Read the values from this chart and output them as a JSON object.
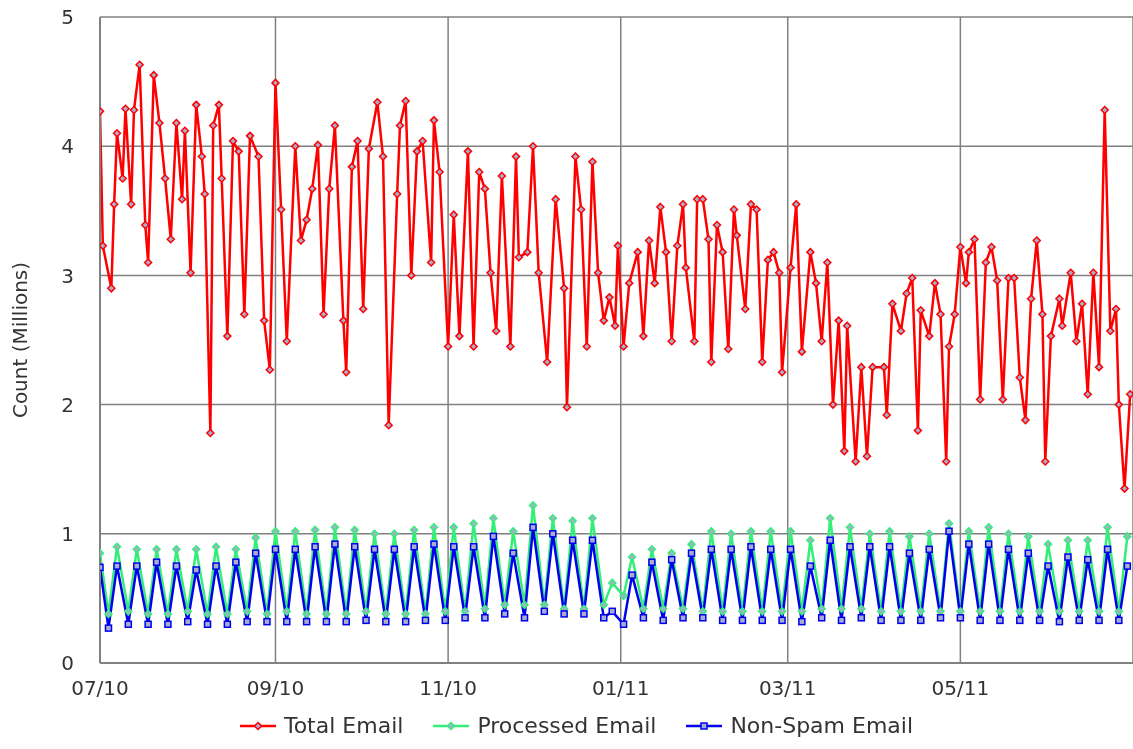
{
  "chart_data": {
    "type": "line",
    "ylabel": "Count (Millions)",
    "ylim": [
      0,
      5
    ],
    "yticks": [
      0,
      1,
      2,
      3,
      4,
      5
    ],
    "xlim": [
      "2010-07-01",
      "2011-07-01"
    ],
    "xticks": [
      {
        "value": "2010-07-01",
        "label": "07/10"
      },
      {
        "value": "2010-09-01",
        "label": "09/10"
      },
      {
        "value": "2010-11-01",
        "label": "11/10"
      },
      {
        "value": "2011-01-01",
        "label": "01/11"
      },
      {
        "value": "2011-03-01",
        "label": "03/11"
      },
      {
        "value": "2011-05-01",
        "label": "05/11"
      },
      {
        "value": "2011-07-01",
        "label": null
      }
    ],
    "grid": true,
    "legend": "bottom",
    "line_style": "solid",
    "x": [
      "2010-07-01",
      "2010-07-04",
      "2010-07-07",
      "2010-07-11",
      "2010-07-14",
      "2010-07-18",
      "2010-07-21",
      "2010-07-25",
      "2010-07-28",
      "2010-08-01",
      "2010-08-04",
      "2010-08-08",
      "2010-08-11",
      "2010-08-15",
      "2010-08-18",
      "2010-08-22",
      "2010-08-25",
      "2010-08-29",
      "2010-09-01",
      "2010-09-05",
      "2010-09-08",
      "2010-09-12",
      "2010-09-15",
      "2010-09-19",
      "2010-09-22",
      "2010-09-26",
      "2010-09-29",
      "2010-10-03",
      "2010-10-06",
      "2010-10-10",
      "2010-10-13",
      "2010-10-17",
      "2010-10-20",
      "2010-10-24",
      "2010-10-27",
      "2010-10-31",
      "2010-11-03",
      "2010-11-07",
      "2010-11-10",
      "2010-11-14",
      "2010-11-17",
      "2010-11-21",
      "2010-11-24",
      "2010-11-28",
      "2010-12-01",
      "2010-12-05",
      "2010-12-08",
      "2010-12-12",
      "2010-12-15",
      "2010-12-19",
      "2010-12-22",
      "2010-12-26",
      "2010-12-29",
      "2011-01-02",
      "2011-01-05",
      "2011-01-09",
      "2011-01-12",
      "2011-01-16",
      "2011-01-19",
      "2011-01-23",
      "2011-01-26",
      "2011-01-30",
      "2011-02-02",
      "2011-02-06",
      "2011-02-09",
      "2011-02-13",
      "2011-02-16",
      "2011-02-20",
      "2011-02-23",
      "2011-02-27",
      "2011-03-02",
      "2011-03-06",
      "2011-03-09",
      "2011-03-13",
      "2011-03-16",
      "2011-03-20",
      "2011-03-23",
      "2011-03-27",
      "2011-03-30",
      "2011-04-03",
      "2011-04-06",
      "2011-04-10",
      "2011-04-13",
      "2011-04-17",
      "2011-04-20",
      "2011-04-24",
      "2011-04-27",
      "2011-05-01",
      "2011-05-04",
      "2011-05-08",
      "2011-05-11",
      "2011-05-15",
      "2011-05-18",
      "2011-05-22",
      "2011-05-25",
      "2011-05-29",
      "2011-06-01",
      "2011-06-05",
      "2011-06-08",
      "2011-06-12",
      "2011-06-15",
      "2011-06-19",
      "2011-06-22",
      "2011-06-26",
      "2011-06-29"
    ],
    "series": [
      {
        "name": "Total Email",
        "color": "#ff0000",
        "marker": "diamond",
        "x": [
          "2010-07-01",
          "2010-07-02",
          "2010-07-05",
          "2010-07-06",
          "2010-07-07",
          "2010-07-09",
          "2010-07-10",
          "2010-07-12",
          "2010-07-13",
          "2010-07-15",
          "2010-07-17",
          "2010-07-18",
          "2010-07-20",
          "2010-07-22",
          "2010-07-24",
          "2010-07-26",
          "2010-07-28",
          "2010-07-30",
          "2010-07-31",
          "2010-08-02",
          "2010-08-04",
          "2010-08-06",
          "2010-08-07",
          "2010-08-09",
          "2010-08-10",
          "2010-08-12",
          "2010-08-13",
          "2010-08-15",
          "2010-08-17",
          "2010-08-19",
          "2010-08-21",
          "2010-08-23",
          "2010-08-26",
          "2010-08-28",
          "2010-08-30",
          "2010-09-01",
          "2010-09-03",
          "2010-09-05",
          "2010-09-08",
          "2010-09-10",
          "2010-09-12",
          "2010-09-14",
          "2010-09-16",
          "2010-09-18",
          "2010-09-20",
          "2010-09-22",
          "2010-09-25",
          "2010-09-26",
          "2010-09-28",
          "2010-09-30",
          "2010-10-02",
          "2010-10-04",
          "2010-10-07",
          "2010-10-09",
          "2010-10-11",
          "2010-10-14",
          "2010-10-15",
          "2010-10-17",
          "2010-10-19",
          "2010-10-21",
          "2010-10-23",
          "2010-10-26",
          "2010-10-27",
          "2010-10-29",
          "2010-11-01",
          "2010-11-03",
          "2010-11-05",
          "2010-11-08",
          "2010-11-10",
          "2010-11-12",
          "2010-11-14",
          "2010-11-16",
          "2010-11-18",
          "2010-11-20",
          "2010-11-23",
          "2010-11-25",
          "2010-11-26",
          "2010-11-29",
          "2010-12-01",
          "2010-12-03",
          "2010-12-06",
          "2010-12-09",
          "2010-12-12",
          "2010-12-13",
          "2010-12-16",
          "2010-12-18",
          "2010-12-20",
          "2010-12-22",
          "2010-12-24",
          "2010-12-26",
          "2010-12-28",
          "2010-12-30",
          "2010-12-31",
          "2011-01-02",
          "2011-01-04",
          "2011-01-07",
          "2011-01-09",
          "2011-01-11",
          "2011-01-13",
          "2011-01-15",
          "2011-01-17",
          "2011-01-19",
          "2011-01-21",
          "2011-01-23",
          "2011-01-24",
          "2011-01-27",
          "2011-01-28",
          "2011-01-30",
          "2011-02-01",
          "2011-02-02",
          "2011-02-04",
          "2011-02-06",
          "2011-02-08",
          "2011-02-10",
          "2011-02-11",
          "2011-02-14",
          "2011-02-16",
          "2011-02-18",
          "2011-02-20",
          "2011-02-22",
          "2011-02-24",
          "2011-02-26",
          "2011-02-27",
          "2011-03-02",
          "2011-03-04",
          "2011-03-06",
          "2011-03-09",
          "2011-03-11",
          "2011-03-13",
          "2011-03-15",
          "2011-03-17",
          "2011-03-19",
          "2011-03-21",
          "2011-03-22",
          "2011-03-25",
          "2011-03-27",
          "2011-03-29",
          "2011-03-31",
          "2011-04-04",
          "2011-04-05",
          "2011-04-07",
          "2011-04-10",
          "2011-04-12",
          "2011-04-14",
          "2011-04-16",
          "2011-04-17",
          "2011-04-20",
          "2011-04-22",
          "2011-04-24",
          "2011-04-26",
          "2011-04-27",
          "2011-04-29",
          "2011-05-01",
          "2011-05-03",
          "2011-05-04",
          "2011-05-06",
          "2011-05-08",
          "2011-05-10",
          "2011-05-12",
          "2011-05-14",
          "2011-05-16",
          "2011-05-18",
          "2011-05-20",
          "2011-05-22",
          "2011-05-24",
          "2011-05-26",
          "2011-05-28",
          "2011-05-30",
          "2011-05-31",
          "2011-06-02",
          "2011-06-05",
          "2011-06-06",
          "2011-06-09",
          "2011-06-11",
          "2011-06-13",
          "2011-06-15",
          "2011-06-17",
          "2011-06-19",
          "2011-06-21",
          "2011-06-23",
          "2011-06-25",
          "2011-06-26",
          "2011-06-28",
          "2011-06-30"
        ],
        "values": [
          4.27,
          3.23,
          2.9,
          3.55,
          4.1,
          3.75,
          4.29,
          3.55,
          4.28,
          4.63,
          3.39,
          3.1,
          4.55,
          4.18,
          3.75,
          3.28,
          4.18,
          3.59,
          4.12,
          3.02,
          4.32,
          3.92,
          3.63,
          1.78,
          4.16,
          4.32,
          3.75,
          2.53,
          4.04,
          3.96,
          2.7,
          4.08,
          3.92,
          2.65,
          2.27,
          4.49,
          3.51,
          2.49,
          4.0,
          3.27,
          3.43,
          3.67,
          4.01,
          2.7,
          3.67,
          4.16,
          2.65,
          2.25,
          3.84,
          4.04,
          2.74,
          3.98,
          4.34,
          3.92,
          1.84,
          3.63,
          4.16,
          4.35,
          3.0,
          3.96,
          4.04,
          3.1,
          4.2,
          3.8,
          2.45,
          3.47,
          2.53,
          3.96,
          2.45,
          3.8,
          3.67,
          3.02,
          2.57,
          3.77,
          2.45,
          3.92,
          3.14,
          3.18,
          4.0,
          3.02,
          2.33,
          3.59,
          2.9,
          1.98,
          3.92,
          3.51,
          2.45,
          3.88,
          3.02,
          2.65,
          2.83,
          2.61,
          3.23,
          2.45,
          2.94,
          3.18,
          2.53,
          3.27,
          2.94,
          3.53,
          3.18,
          2.49,
          3.23,
          3.55,
          3.06,
          2.49,
          3.59,
          3.59,
          3.28,
          2.33,
          3.39,
          3.18,
          2.43,
          3.51,
          3.31,
          2.74,
          3.55,
          3.51,
          2.33,
          3.12,
          3.18,
          3.02,
          2.25,
          3.06,
          3.55,
          2.41,
          3.18,
          2.94,
          2.49,
          3.1,
          2.0,
          2.65,
          1.64,
          2.61,
          1.56,
          2.29,
          1.6,
          2.29,
          2.29,
          1.92,
          2.78,
          2.57,
          2.86,
          2.98,
          1.8,
          2.73,
          2.53,
          2.94,
          2.7,
          1.56,
          2.45,
          2.7,
          3.22,
          2.94,
          3.18,
          3.28,
          2.04,
          3.1,
          3.22,
          2.96,
          2.04,
          2.98,
          2.98,
          2.21,
          1.88,
          2.82,
          3.27,
          2.7,
          1.56,
          2.53,
          2.82,
          2.61,
          3.02,
          2.49,
          2.78,
          2.08,
          3.02,
          2.29,
          4.28,
          2.57,
          2.74,
          2.0,
          1.35,
          2.08
        ]
      },
      {
        "name": "Processed Email",
        "color": "#33ee77",
        "marker": "diamond",
        "values": [
          0.85,
          0.38,
          0.9,
          0.4,
          0.88,
          0.38,
          0.88,
          0.38,
          0.88,
          0.4,
          0.88,
          0.38,
          0.9,
          0.38,
          0.88,
          0.4,
          0.97,
          0.38,
          1.02,
          0.4,
          1.02,
          0.38,
          1.03,
          0.38,
          1.05,
          0.38,
          1.03,
          0.4,
          1.0,
          0.38,
          1.0,
          0.38,
          1.03,
          0.38,
          1.05,
          0.4,
          1.05,
          0.4,
          1.08,
          0.42,
          1.12,
          0.45,
          1.02,
          0.45,
          1.22,
          0.45,
          1.12,
          0.42,
          1.1,
          0.42,
          1.12,
          0.45,
          0.62,
          0.52,
          0.82,
          0.42,
          0.88,
          0.42,
          0.85,
          0.42,
          0.92,
          0.4,
          1.02,
          0.4,
          1.0,
          0.4,
          1.02,
          0.4,
          1.02,
          0.4,
          1.02,
          0.4,
          0.95,
          0.42,
          1.12,
          0.42,
          1.05,
          0.42,
          1.0,
          0.4,
          1.02,
          0.4,
          0.98,
          0.4,
          1.0,
          0.4,
          1.08,
          0.4,
          1.02,
          0.4,
          1.05,
          0.4,
          1.0,
          0.4,
          0.98,
          0.4,
          0.92,
          0.4,
          0.95,
          0.4,
          0.95,
          0.4,
          1.05,
          0.4,
          0.98
        ]
      },
      {
        "name": "Non-Spam Email",
        "color": "#0000ee",
        "marker": "square",
        "values": [
          0.74,
          0.27,
          0.75,
          0.3,
          0.75,
          0.3,
          0.78,
          0.3,
          0.75,
          0.32,
          0.72,
          0.3,
          0.75,
          0.3,
          0.78,
          0.32,
          0.85,
          0.32,
          0.88,
          0.32,
          0.88,
          0.32,
          0.9,
          0.32,
          0.92,
          0.32,
          0.9,
          0.33,
          0.88,
          0.32,
          0.88,
          0.32,
          0.9,
          0.33,
          0.92,
          0.33,
          0.9,
          0.35,
          0.9,
          0.35,
          0.98,
          0.38,
          0.85,
          0.35,
          1.05,
          0.4,
          1.0,
          0.38,
          0.95,
          0.38,
          0.95,
          0.35,
          0.4,
          0.3,
          0.68,
          0.35,
          0.78,
          0.33,
          0.8,
          0.35,
          0.85,
          0.35,
          0.88,
          0.33,
          0.88,
          0.33,
          0.9,
          0.33,
          0.88,
          0.33,
          0.88,
          0.32,
          0.75,
          0.35,
          0.95,
          0.33,
          0.9,
          0.35,
          0.9,
          0.33,
          0.9,
          0.33,
          0.85,
          0.33,
          0.88,
          0.35,
          1.02,
          0.35,
          0.92,
          0.33,
          0.92,
          0.33,
          0.88,
          0.33,
          0.85,
          0.33,
          0.75,
          0.32,
          0.82,
          0.33,
          0.8,
          0.33,
          0.88,
          0.33,
          0.75
        ]
      }
    ]
  }
}
